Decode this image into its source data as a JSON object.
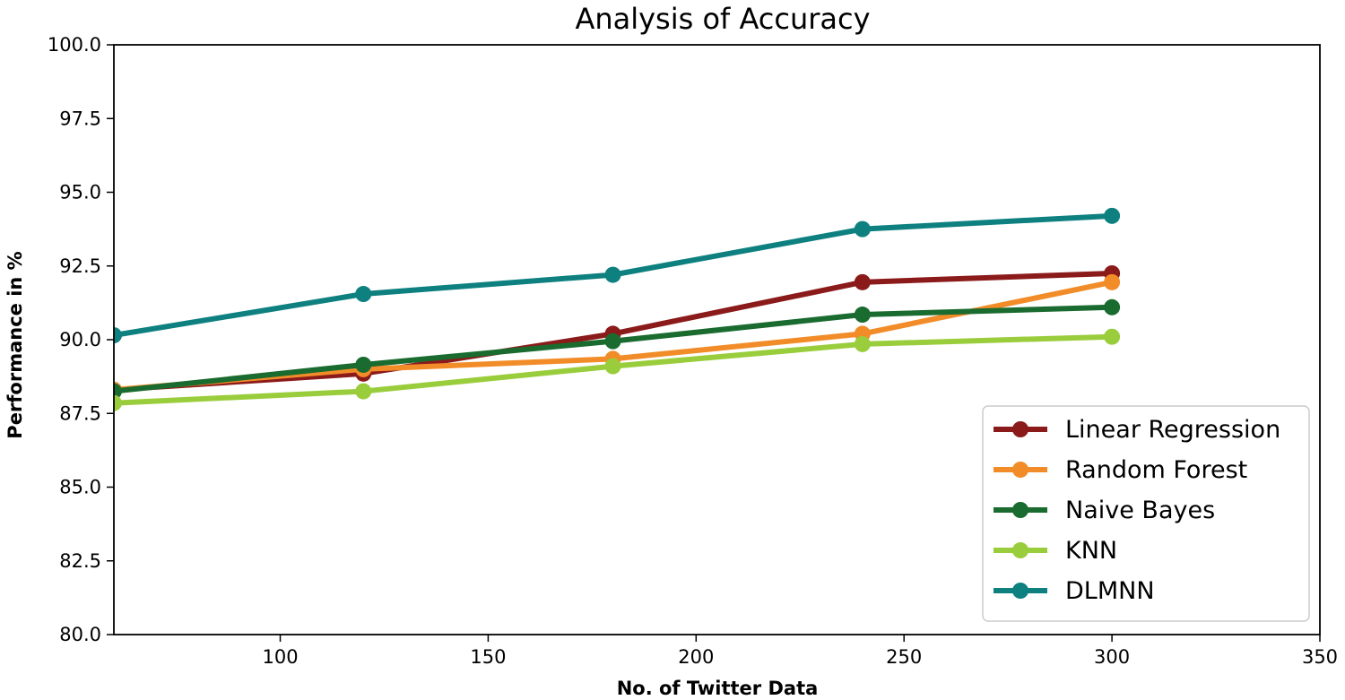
{
  "chart_data": {
    "type": "line",
    "title": "Analysis of Accuracy",
    "xlabel": "No. of Twitter Data",
    "ylabel": "Performance in %",
    "xlim": [
      60,
      350
    ],
    "ylim": [
      80.0,
      100.0
    ],
    "xticks": [
      100,
      150,
      200,
      250,
      300,
      350
    ],
    "yticks": [
      "80.0",
      "82.5",
      "85.0",
      "87.5",
      "90.0",
      "92.5",
      "95.0",
      "97.5",
      "100.0"
    ],
    "x": [
      60,
      120,
      180,
      240,
      300
    ],
    "legend_position": "lower-right",
    "series": [
      {
        "name": "Linear Regression",
        "color": "#8b1a1a",
        "values": [
          88.3,
          88.85,
          90.2,
          91.95,
          92.25
        ]
      },
      {
        "name": "Random Forest",
        "color": "#f28c28",
        "values": [
          88.3,
          89.0,
          89.35,
          90.2,
          91.95
        ]
      },
      {
        "name": "Naive Bayes",
        "color": "#1a6b2f",
        "values": [
          88.25,
          89.15,
          89.95,
          90.85,
          91.1
        ]
      },
      {
        "name": "KNN",
        "color": "#9acd3c",
        "values": [
          87.85,
          88.25,
          89.1,
          89.85,
          90.1
        ]
      },
      {
        "name": "DLMNN",
        "color": "#0e8080",
        "values": [
          90.15,
          91.55,
          92.2,
          93.75,
          94.2
        ]
      }
    ]
  }
}
